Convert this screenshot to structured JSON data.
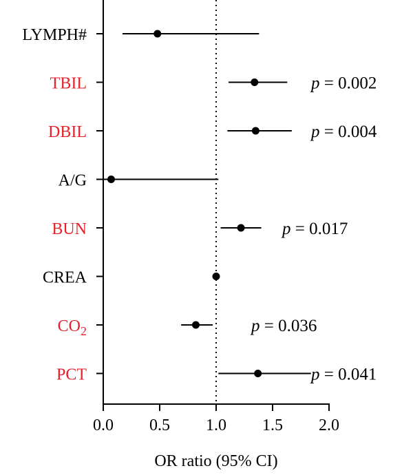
{
  "chart_data": {
    "type": "forest",
    "xlabel": "OR ratio (95% CI)",
    "xlim": [
      0.0,
      2.0
    ],
    "xticks": [
      "0.0",
      "0.5",
      "1.0",
      "1.5",
      "2.0"
    ],
    "reference_line": 1.0,
    "rows": [
      {
        "label": "LYMPH#",
        "estimate": 0.48,
        "lower": 0.17,
        "upper": 1.38,
        "highlight": false,
        "p_text": ""
      },
      {
        "label": "TBIL",
        "estimate": 1.34,
        "lower": 1.11,
        "upper": 1.63,
        "highlight": true,
        "p_text": "p = 0.002"
      },
      {
        "label": "DBIL",
        "estimate": 1.35,
        "lower": 1.1,
        "upper": 1.67,
        "highlight": true,
        "p_text": "p = 0.004"
      },
      {
        "label": "A/G",
        "estimate": 0.07,
        "lower": 0.0,
        "upper": 1.02,
        "highlight": false,
        "p_text": ""
      },
      {
        "label": "BUN",
        "estimate": 1.22,
        "lower": 1.04,
        "upper": 1.4,
        "highlight": true,
        "p_text": "p = 0.017"
      },
      {
        "label": "CREA",
        "estimate": 1.0,
        "lower": 1.0,
        "upper": 1.0,
        "highlight": false,
        "p_text": ""
      },
      {
        "label": "CO",
        "label_sub": "2",
        "estimate": 0.82,
        "lower": 0.69,
        "upper": 0.97,
        "highlight": true,
        "p_text": "p = 0.036"
      },
      {
        "label": "PCT",
        "estimate": 1.37,
        "lower": 1.02,
        "upper": 1.84,
        "highlight": true,
        "p_text": "p = 0.041"
      }
    ]
  },
  "colors": {
    "highlight": "#e8202a",
    "normal": "#000000",
    "axis": "#000000"
  }
}
